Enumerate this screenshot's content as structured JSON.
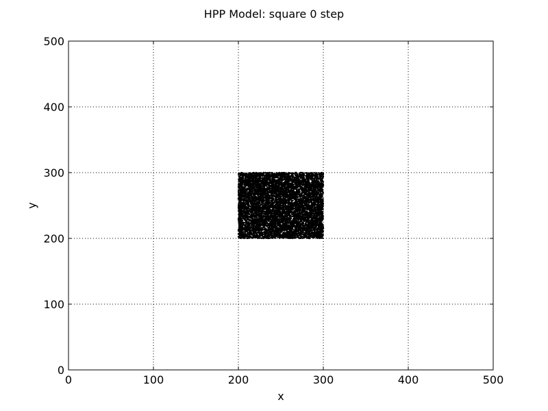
{
  "chart_data": {
    "type": "scatter",
    "title": "HPP Model: square 0 step",
    "xlabel": "x",
    "ylabel": "y",
    "xlim": [
      0,
      500
    ],
    "ylim": [
      0,
      500
    ],
    "xticks": [
      "0",
      "100",
      "200",
      "300",
      "400",
      "500"
    ],
    "yticks": [
      "0",
      "100",
      "200",
      "300",
      "400",
      "500"
    ],
    "grid": true,
    "point_color": "#000000",
    "series": [
      {
        "distribution": "uniform-random",
        "x_range": [
          200,
          300
        ],
        "y_range": [
          200,
          300
        ],
        "count": 10000
      }
    ]
  }
}
